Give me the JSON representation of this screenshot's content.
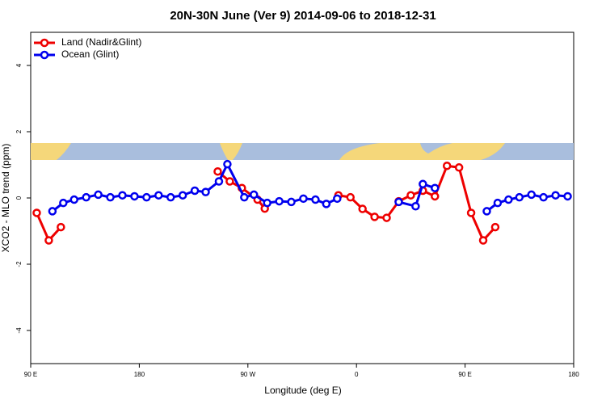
{
  "chart_data": {
    "type": "line",
    "title": "20N-30N June (Ver 9)   2014-09-06 to 2018-12-31",
    "x_label": "Longitude (deg E)",
    "y_label": "XCO2 - MLO trend (ppm)",
    "xlim": [
      90,
      540
    ],
    "xticks": [
      {
        "value": 90,
        "label": "90 E"
      },
      180,
      {
        "value": 270,
        "label": "90 W"
      },
      {
        "value": 360,
        "label": "0"
      },
      {
        "value": 450,
        "label": "90 E"
      },
      {
        "value": 540,
        "label": "180"
      }
    ],
    "ylim": [
      -5,
      5
    ],
    "yticks": [
      -4,
      -2,
      0,
      2,
      4
    ],
    "legend": "top-left",
    "series": [
      {
        "name": "Land (Nadir&Glint)",
        "color": "#ee0000",
        "x": [
          95,
          105,
          115,
          null,
          245,
          255,
          265,
          278,
          284,
          null,
          345,
          355,
          365,
          375,
          385,
          395,
          405,
          415,
          425,
          435,
          445,
          455,
          465,
          475
        ],
        "values": [
          -0.45,
          -1.28,
          -0.88,
          null,
          0.8,
          0.5,
          0.3,
          -0.05,
          -0.32,
          null,
          0.08,
          0.02,
          -0.33,
          -0.57,
          -0.6,
          -0.1,
          0.08,
          0.22,
          0.05,
          0.97,
          0.92,
          -0.45,
          -1.28,
          -0.88
        ]
      },
      {
        "name": "Ocean (Glint)",
        "color": "#0000ee",
        "x": [
          108,
          117,
          126,
          136,
          146,
          156,
          166,
          176,
          186,
          196,
          206,
          216,
          226,
          235,
          246,
          253,
          267,
          275,
          286,
          296,
          306,
          316,
          326,
          335,
          344,
          null,
          395,
          409,
          415,
          425,
          null,
          468,
          477,
          486,
          495,
          505,
          515,
          525,
          535
        ],
        "values": [
          -0.4,
          -0.15,
          -0.05,
          0.02,
          0.1,
          0.02,
          0.08,
          0.05,
          0.02,
          0.08,
          0.02,
          0.08,
          0.22,
          0.18,
          0.5,
          1.02,
          0.02,
          0.1,
          -0.15,
          -0.1,
          -0.12,
          -0.02,
          -0.05,
          -0.18,
          -0.02,
          null,
          -0.12,
          -0.25,
          0.42,
          0.3,
          null,
          -0.4,
          -0.15,
          -0.05,
          0.02,
          0.1,
          0.02,
          0.08,
          0.05
        ]
      }
    ]
  }
}
